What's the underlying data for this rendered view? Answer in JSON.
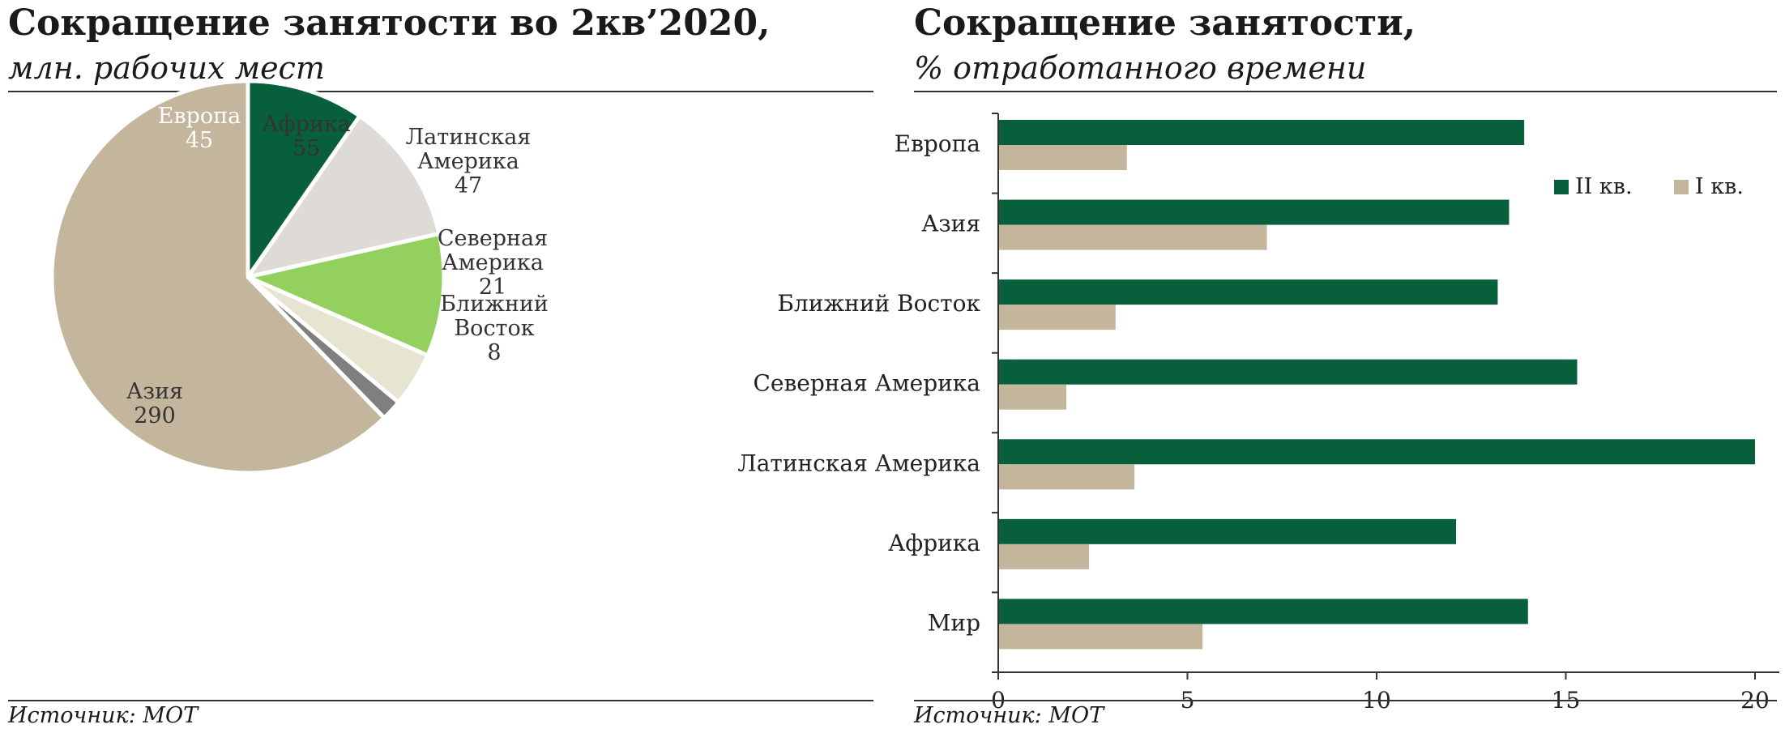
{
  "left_panel": {
    "title": "Сокращение занятости во 2кв’2020,",
    "subtitle": "млн. рабочих мест",
    "source": "Источник: МОТ"
  },
  "right_panel": {
    "title": "Сокращение занятости,",
    "subtitle": "% отработанного времени",
    "source": "Источник: МОТ"
  },
  "chart_data": [
    {
      "type": "pie",
      "title": "Сокращение занятости во 2кв’2020,",
      "subtitle": "млн. рабочих мест",
      "slices": [
        {
          "label": "Европа",
          "value": 45,
          "color": "#075f3b",
          "text_color": "#ffffff"
        },
        {
          "label": "Африка",
          "value": 55,
          "color": "#dedbd6",
          "text_color": "#333333"
        },
        {
          "label": "Латинская Америка",
          "value": 47,
          "color": "#93d05e",
          "text_color": "#333333"
        },
        {
          "label": "Северная Америка",
          "value": 21,
          "color": "#e6e5d1",
          "text_color": "#333333"
        },
        {
          "label": "Ближний Восток",
          "value": 8,
          "color": "#7f7f7f",
          "text_color": "#333333"
        },
        {
          "label": "Азия",
          "value": 290,
          "color": "#c4b69d",
          "text_color": "#333333"
        }
      ]
    },
    {
      "type": "bar",
      "orientation": "horizontal",
      "title": "Сокращение занятости,",
      "subtitle": "% отработанного времени",
      "categories": [
        "Европа",
        "Азия",
        "Ближний Восток",
        "Северная Америка",
        "Латинская Америка",
        "Африка",
        "Мир"
      ],
      "series": [
        {
          "name": "II кв.",
          "color": "#075f3b",
          "values": [
            13.9,
            13.5,
            13.2,
            15.3,
            20.0,
            12.1,
            14.0
          ]
        },
        {
          "name": "I кв.",
          "color": "#c4b69d",
          "values": [
            3.4,
            7.1,
            3.1,
            1.8,
            3.6,
            2.4,
            5.4
          ]
        }
      ],
      "xlim": [
        0,
        20
      ],
      "xticks": [
        0,
        5,
        10,
        15,
        20
      ],
      "grid": false,
      "legend": "top-right"
    }
  ]
}
